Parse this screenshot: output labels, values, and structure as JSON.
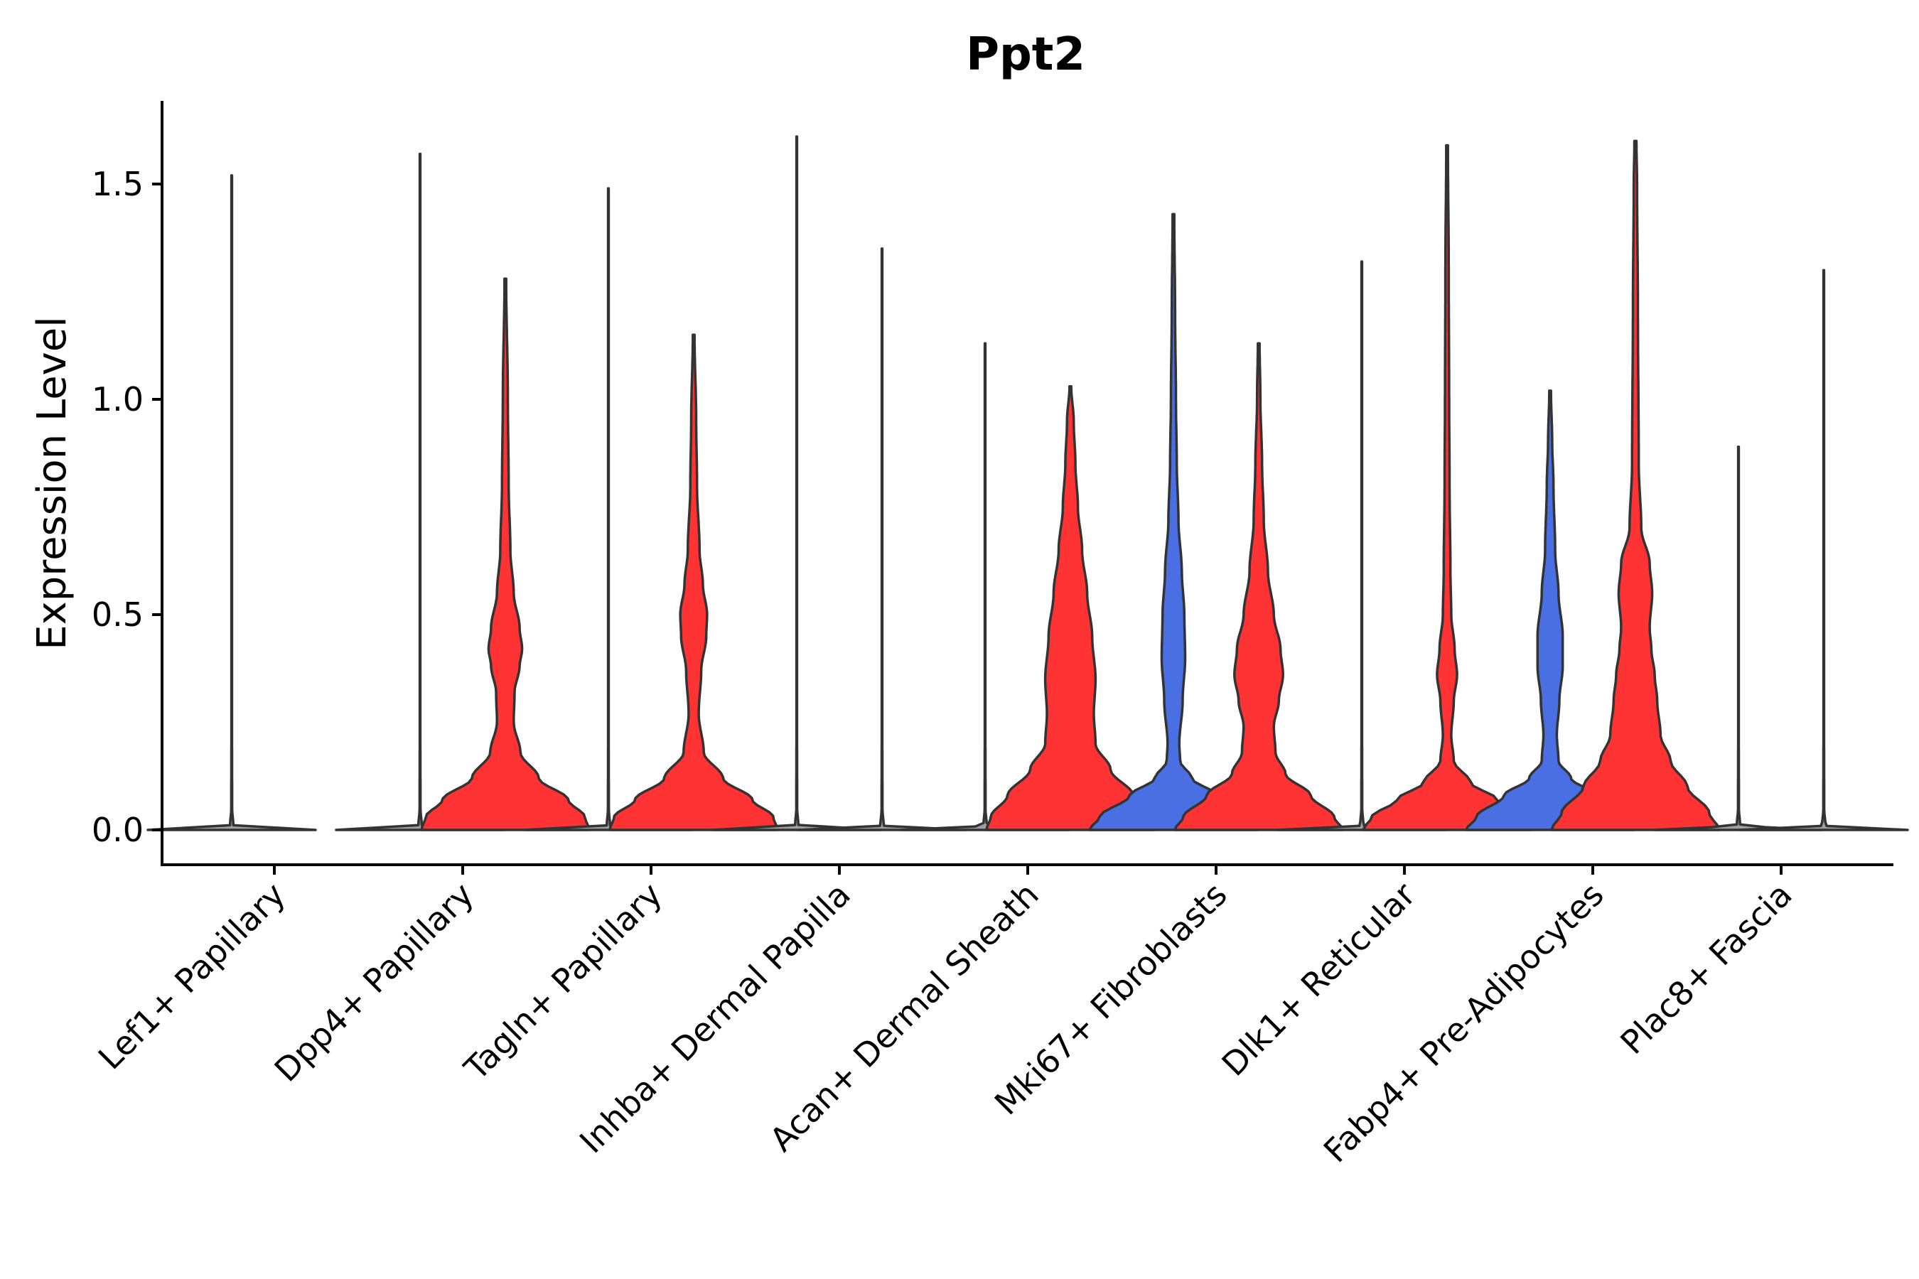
{
  "chart_data": {
    "type": "violin",
    "title": "Ppt2",
    "xlabel": "",
    "ylabel": "Expression Level",
    "ylim": [
      -0.08,
      1.7
    ],
    "yticks": [
      0.0,
      0.5,
      1.0,
      1.5
    ],
    "ytick_labels": [
      "0.0",
      "0.5",
      "1.0",
      "1.5"
    ],
    "grid": false,
    "legend": "none",
    "colors": {
      "blue": "#4a6fe3",
      "red": "#ff3333",
      "outline": "#333333"
    },
    "categories": [
      "Lef1+ Papillary",
      "Dpp4+ Papillary",
      "Tagln+ Papillary",
      "Inhba+ Dermal Papilla",
      "Acan+ Dermal Sheath",
      "Mki67+ Fibroblasts",
      "Dlk1+ Reticular",
      "Fabp4+ Pre-Adipocytes",
      "Plac8+ Fascia"
    ],
    "violins": [
      {
        "category": 0,
        "side": "left",
        "color": "#a0a0a0",
        "max": 1.52,
        "profile": [
          [
            0,
            1
          ],
          [
            0.01,
            0.02
          ],
          [
            0.05,
            0.005
          ],
          [
            0.3,
            0.003
          ],
          [
            1.52,
            0.003
          ]
        ]
      },
      {
        "category": 1,
        "side": "left",
        "color": "#a0a0a0",
        "max": 1.57,
        "profile": [
          [
            0,
            1
          ],
          [
            0.01,
            0.02
          ],
          [
            0.05,
            0.005
          ],
          [
            0.3,
            0.003
          ],
          [
            1.57,
            0.003
          ]
        ]
      },
      {
        "category": 1,
        "side": "right",
        "color": "#ff3333",
        "max": 1.28,
        "profile": [
          [
            0,
            1
          ],
          [
            0.03,
            0.95
          ],
          [
            0.07,
            0.75
          ],
          [
            0.12,
            0.4
          ],
          [
            0.18,
            0.18
          ],
          [
            0.25,
            0.1
          ],
          [
            0.32,
            0.11
          ],
          [
            0.38,
            0.17
          ],
          [
            0.42,
            0.2
          ],
          [
            0.47,
            0.17
          ],
          [
            0.55,
            0.1
          ],
          [
            0.65,
            0.06
          ],
          [
            0.8,
            0.04
          ],
          [
            1.0,
            0.03
          ],
          [
            1.28,
            0.01
          ]
        ]
      },
      {
        "category": 2,
        "side": "left",
        "color": "#a0a0a0",
        "max": 1.49,
        "profile": [
          [
            0,
            1
          ],
          [
            0.01,
            0.02
          ],
          [
            0.05,
            0.005
          ],
          [
            0.3,
            0.003
          ],
          [
            1.49,
            0.003
          ]
        ]
      },
      {
        "category": 2,
        "side": "right",
        "color": "#ff3333",
        "max": 1.15,
        "profile": [
          [
            0,
            1
          ],
          [
            0.03,
            0.95
          ],
          [
            0.07,
            0.7
          ],
          [
            0.12,
            0.35
          ],
          [
            0.18,
            0.12
          ],
          [
            0.27,
            0.06
          ],
          [
            0.37,
            0.09
          ],
          [
            0.45,
            0.15
          ],
          [
            0.5,
            0.16
          ],
          [
            0.57,
            0.11
          ],
          [
            0.65,
            0.07
          ],
          [
            0.8,
            0.04
          ],
          [
            0.95,
            0.03
          ],
          [
            1.15,
            0.01
          ]
        ]
      },
      {
        "category": 3,
        "side": "left",
        "color": "#a0a0a0",
        "max": 1.61,
        "profile": [
          [
            0,
            1
          ],
          [
            0.01,
            0.02
          ],
          [
            0.05,
            0.005
          ],
          [
            0.3,
            0.003
          ],
          [
            1.61,
            0.003
          ]
        ]
      },
      {
        "category": 3,
        "side": "right",
        "color": "#a0a0a0",
        "max": 1.35,
        "profile": [
          [
            0,
            1
          ],
          [
            0.01,
            0.02
          ],
          [
            0.05,
            0.005
          ],
          [
            0.3,
            0.003
          ],
          [
            1.35,
            0.003
          ]
        ]
      },
      {
        "category": 4,
        "side": "left",
        "color": "#a0a0a0",
        "max": 1.13,
        "profile": [
          [
            0,
            1
          ],
          [
            0.01,
            0.02
          ],
          [
            0.05,
            0.005
          ],
          [
            0.3,
            0.003
          ],
          [
            1.13,
            0.003
          ]
        ]
      },
      {
        "category": 4,
        "side": "right",
        "color": "#ff3333",
        "max": 1.03,
        "profile": [
          [
            0,
            1
          ],
          [
            0.03,
            0.95
          ],
          [
            0.08,
            0.75
          ],
          [
            0.14,
            0.48
          ],
          [
            0.2,
            0.3
          ],
          [
            0.27,
            0.28
          ],
          [
            0.35,
            0.3
          ],
          [
            0.45,
            0.26
          ],
          [
            0.55,
            0.2
          ],
          [
            0.65,
            0.14
          ],
          [
            0.75,
            0.09
          ],
          [
            0.85,
            0.06
          ],
          [
            0.95,
            0.04
          ],
          [
            1.03,
            0.01
          ]
        ]
      },
      {
        "category": 5,
        "side": "left",
        "color": "#4a6fe3",
        "max": 1.43,
        "profile": [
          [
            0,
            1
          ],
          [
            0.03,
            0.88
          ],
          [
            0.08,
            0.52
          ],
          [
            0.12,
            0.22
          ],
          [
            0.16,
            0.08
          ],
          [
            0.2,
            0.07
          ],
          [
            0.3,
            0.11
          ],
          [
            0.4,
            0.14
          ],
          [
            0.5,
            0.13
          ],
          [
            0.6,
            0.1
          ],
          [
            0.72,
            0.06
          ],
          [
            0.85,
            0.04
          ],
          [
            1.0,
            0.03
          ],
          [
            1.2,
            0.02
          ],
          [
            1.43,
            0.01
          ]
        ]
      },
      {
        "category": 5,
        "side": "right",
        "color": "#ff3333",
        "max": 1.13,
        "profile": [
          [
            0,
            1
          ],
          [
            0.03,
            0.9
          ],
          [
            0.08,
            0.62
          ],
          [
            0.13,
            0.32
          ],
          [
            0.18,
            0.2
          ],
          [
            0.24,
            0.18
          ],
          [
            0.3,
            0.24
          ],
          [
            0.36,
            0.29
          ],
          [
            0.42,
            0.26
          ],
          [
            0.5,
            0.18
          ],
          [
            0.6,
            0.11
          ],
          [
            0.72,
            0.06
          ],
          [
            0.85,
            0.04
          ],
          [
            1.0,
            0.02
          ],
          [
            1.13,
            0.01
          ]
        ]
      },
      {
        "category": 6,
        "side": "left",
        "color": "#a0a0a0",
        "max": 1.32,
        "profile": [
          [
            0,
            1
          ],
          [
            0.01,
            0.02
          ],
          [
            0.05,
            0.005
          ],
          [
            0.3,
            0.003
          ],
          [
            1.32,
            0.003
          ]
        ]
      },
      {
        "category": 6,
        "side": "right",
        "color": "#ff3333",
        "max": 1.59,
        "profile": [
          [
            0,
            1
          ],
          [
            0.03,
            0.9
          ],
          [
            0.07,
            0.6
          ],
          [
            0.11,
            0.28
          ],
          [
            0.16,
            0.08
          ],
          [
            0.22,
            0.05
          ],
          [
            0.3,
            0.08
          ],
          [
            0.36,
            0.12
          ],
          [
            0.42,
            0.09
          ],
          [
            0.5,
            0.05
          ],
          [
            0.6,
            0.04
          ],
          [
            0.8,
            0.03
          ],
          [
            1.0,
            0.025
          ],
          [
            1.3,
            0.02
          ],
          [
            1.59,
            0.01
          ]
        ]
      },
      {
        "category": 7,
        "side": "left",
        "color": "#4a6fe3",
        "max": 1.02,
        "profile": [
          [
            0,
            1
          ],
          [
            0.03,
            0.88
          ],
          [
            0.08,
            0.55
          ],
          [
            0.12,
            0.25
          ],
          [
            0.16,
            0.1
          ],
          [
            0.22,
            0.08
          ],
          [
            0.3,
            0.11
          ],
          [
            0.38,
            0.15
          ],
          [
            0.45,
            0.15
          ],
          [
            0.55,
            0.1
          ],
          [
            0.65,
            0.06
          ],
          [
            0.8,
            0.04
          ],
          [
            0.9,
            0.025
          ],
          [
            1.02,
            0.01
          ]
        ]
      },
      {
        "category": 7,
        "side": "right",
        "color": "#ff3333",
        "max": 1.6,
        "profile": [
          [
            0,
            1
          ],
          [
            0.04,
            0.88
          ],
          [
            0.1,
            0.62
          ],
          [
            0.16,
            0.42
          ],
          [
            0.22,
            0.3
          ],
          [
            0.3,
            0.26
          ],
          [
            0.36,
            0.23
          ],
          [
            0.42,
            0.19
          ],
          [
            0.47,
            0.17
          ],
          [
            0.55,
            0.2
          ],
          [
            0.62,
            0.17
          ],
          [
            0.7,
            0.07
          ],
          [
            0.85,
            0.04
          ],
          [
            1.2,
            0.03
          ],
          [
            1.5,
            0.02
          ],
          [
            1.6,
            0.012
          ]
        ]
      },
      {
        "category": 8,
        "side": "left",
        "color": "#a0a0a0",
        "max": 0.89,
        "profile": [
          [
            0,
            1
          ],
          [
            0.01,
            0.02
          ],
          [
            0.05,
            0.005
          ],
          [
            0.3,
            0.003
          ],
          [
            0.89,
            0.003
          ]
        ]
      },
      {
        "category": 8,
        "side": "right",
        "color": "#a0a0a0",
        "max": 1.3,
        "profile": [
          [
            0,
            1
          ],
          [
            0.01,
            0.02
          ],
          [
            0.05,
            0.005
          ],
          [
            0.3,
            0.003
          ],
          [
            1.3,
            0.003
          ]
        ]
      }
    ]
  }
}
